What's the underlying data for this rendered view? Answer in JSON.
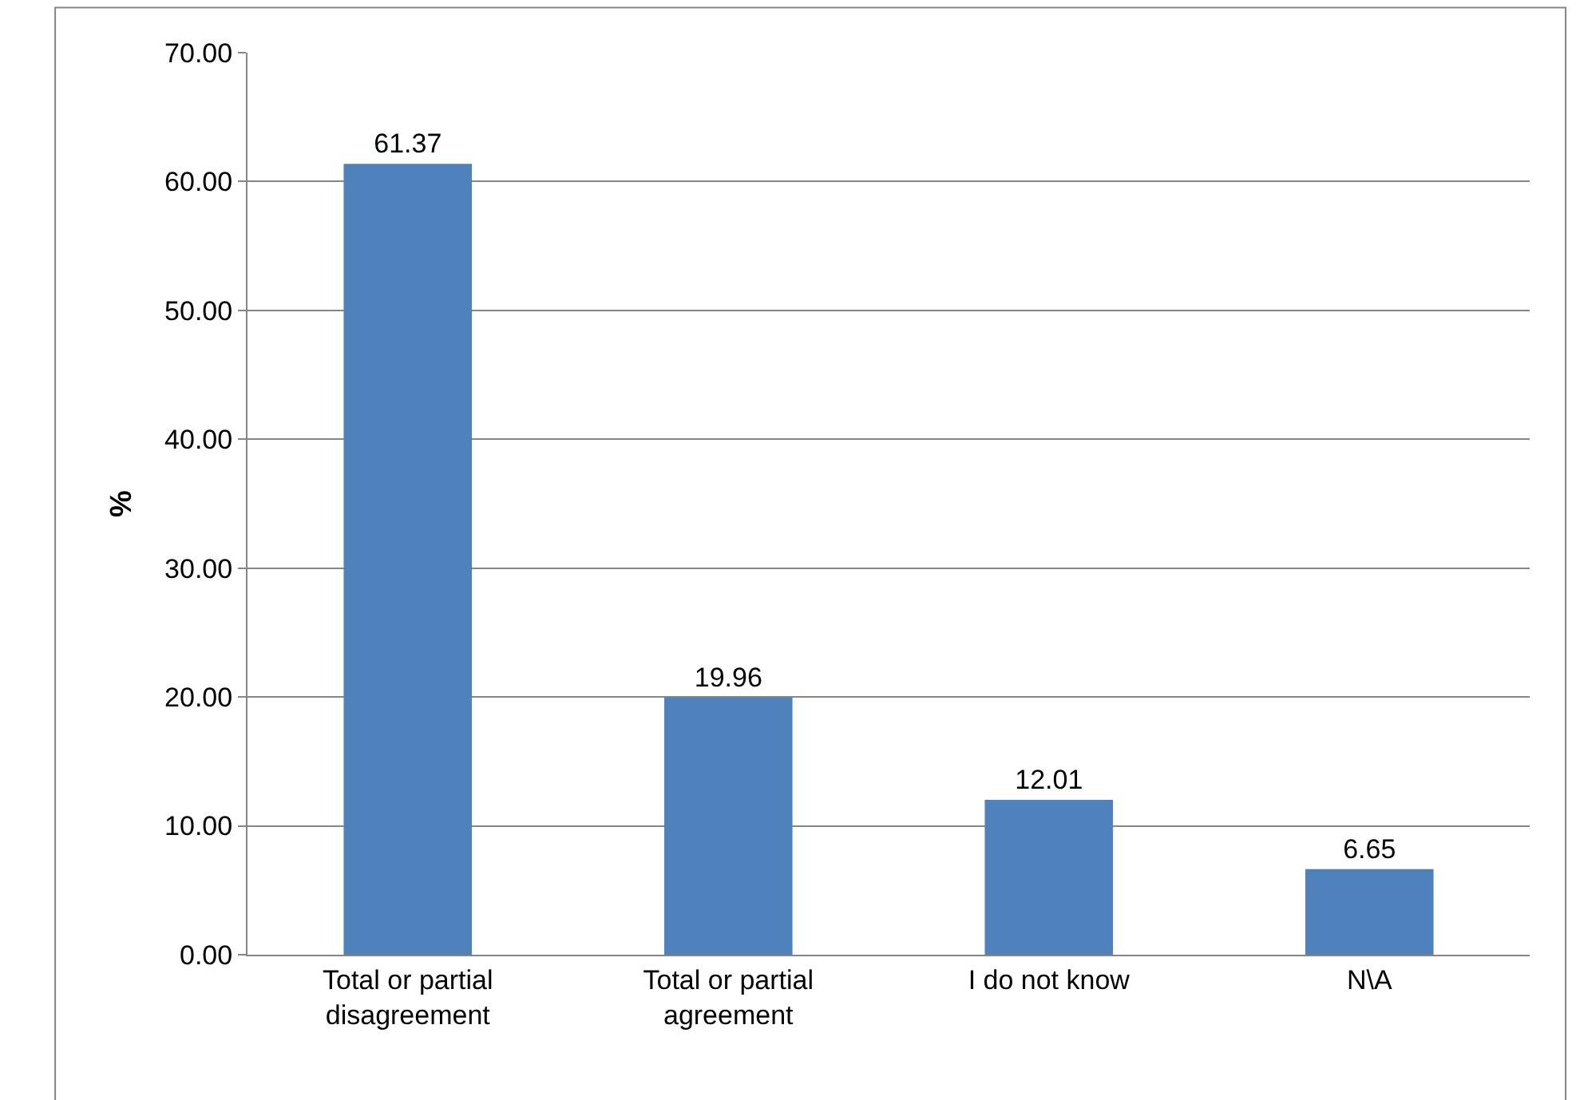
{
  "chart_data": {
    "type": "bar",
    "ylabel": "%",
    "categories": [
      "Total or partial disagreement",
      "Total or partial agreement",
      "I do not know",
      "N\\A"
    ],
    "values": [
      61.37,
      19.96,
      12.01,
      6.65
    ],
    "color": "#4f81bd",
    "ylim": [
      0,
      70
    ],
    "yticks": [
      {
        "value": 0,
        "label": "0.00"
      },
      {
        "value": 10,
        "label": "10.00"
      },
      {
        "value": 20,
        "label": "20.00"
      },
      {
        "value": 30,
        "label": "30.00"
      },
      {
        "value": 40,
        "label": "40.00"
      },
      {
        "value": 50,
        "label": "50.00"
      },
      {
        "value": 60,
        "label": "60.00"
      },
      {
        "value": 70,
        "label": "70.00"
      }
    ],
    "grid": "y",
    "data_labels": true,
    "legend": false
  }
}
